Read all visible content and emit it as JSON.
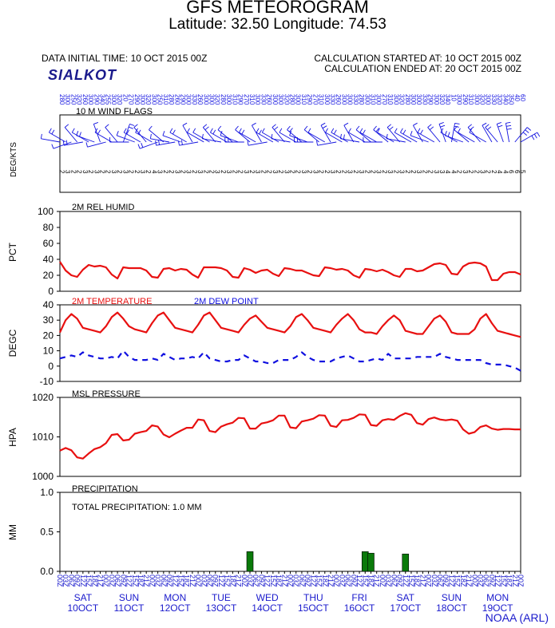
{
  "header": {
    "title": "GFS METEOROGRAM",
    "subtitle": "Latitude: 32.50 Longitude:  74.53",
    "initial_time": "DATA INITIAL TIME: 10 OCT 2015 00Z",
    "station": "SIALKOT",
    "calc_started": "CALCULATION STARTED AT: 10 OCT 2015 00Z",
    "calc_ended": "CALCULATION ENDED AT: 20 OCT 2015 00Z"
  },
  "credit": "NOAA (ARL)",
  "colors": {
    "red": "#e81010",
    "blue": "#1010e0",
    "green": "#0a7a0a",
    "dayblue": "#1a1acc"
  },
  "chart_data": [
    {
      "type": "wind-barbs",
      "title": "10 M  WIND FLAGS",
      "ylabel": "DEG/KTS",
      "hours": [
        0,
        3,
        6,
        9,
        12,
        15,
        18,
        21,
        24,
        27,
        30,
        33,
        36,
        39,
        42,
        45,
        48,
        51,
        54,
        57,
        60,
        63,
        66,
        69,
        72,
        75,
        78,
        81,
        84,
        87,
        90,
        93,
        96,
        99,
        102,
        105,
        108,
        111,
        114,
        117,
        120,
        123,
        126,
        129,
        132,
        135,
        138,
        141,
        144,
        147,
        150,
        153,
        156,
        159,
        162,
        165,
        168,
        171,
        174,
        177,
        180,
        183,
        186,
        189,
        192,
        195,
        198,
        201,
        204,
        207,
        210,
        213,
        216,
        219,
        222,
        225,
        228,
        231,
        234,
        237,
        240
      ],
      "speeds": [
        2,
        3,
        2,
        2,
        3,
        2,
        3,
        2,
        2,
        3,
        2,
        3,
        2,
        2,
        3,
        2,
        4,
        3,
        2,
        2,
        3,
        2,
        3,
        2,
        3,
        2,
        2,
        3,
        2,
        3,
        2,
        2,
        3,
        2,
        3,
        2,
        2,
        3,
        2,
        3,
        2,
        2,
        3,
        2,
        3,
        2,
        2,
        3,
        2,
        2,
        3,
        2,
        3,
        2,
        2,
        3,
        2,
        3,
        2,
        3,
        2,
        2,
        3,
        2,
        2,
        3,
        3,
        4,
        4,
        2,
        3,
        2,
        2,
        3,
        2,
        2,
        4,
        4,
        6,
        6,
        5
      ],
      "directions": [
        280,
        300,
        250,
        320,
        260,
        300,
        290,
        340,
        255,
        300,
        320,
        20,
        270,
        290,
        300,
        320,
        300,
        250,
        310,
        280,
        260,
        290,
        300,
        330,
        260,
        300,
        300,
        320,
        280,
        300,
        310,
        290,
        270,
        310,
        300,
        330,
        260,
        300,
        300,
        320,
        280,
        300,
        310,
        290,
        270,
        310,
        300,
        330,
        260,
        300,
        300,
        330,
        280,
        300,
        310,
        300,
        270,
        310,
        300,
        320,
        280,
        300,
        300,
        330,
        290,
        300,
        320,
        340,
        10,
        300,
        290,
        310,
        300,
        320,
        300,
        330,
        320,
        340,
        350,
        40,
        60
      ]
    },
    {
      "type": "line",
      "title": "2M REL HUMID",
      "ylabel": "PCT",
      "ylim": [
        0,
        100
      ],
      "yticks": [
        0,
        20,
        40,
        60,
        80,
        100
      ],
      "series": [
        {
          "color": "red",
          "x": [
            0,
            3,
            6,
            9,
            12,
            15,
            18,
            21,
            24,
            27,
            30,
            33,
            36,
            39,
            42,
            45,
            48,
            51,
            54,
            57,
            60,
            63,
            66,
            69,
            72,
            75,
            78,
            81,
            84,
            87,
            90,
            93,
            96,
            99,
            102,
            105,
            108,
            111,
            114,
            117,
            120,
            123,
            126,
            129,
            132,
            135,
            138,
            141,
            144,
            147,
            150,
            153,
            156,
            159,
            162,
            165,
            168,
            171,
            174,
            177,
            180,
            183,
            186,
            189,
            192,
            195,
            198,
            201,
            204,
            207,
            210,
            213,
            216,
            219,
            222,
            225,
            228,
            231,
            234,
            237,
            240
          ],
          "values": [
            37,
            26,
            20,
            18,
            27,
            33,
            31,
            32,
            30,
            21,
            16,
            30,
            29,
            29,
            29,
            26,
            18,
            17,
            28,
            29,
            26,
            28,
            27,
            21,
            17,
            30,
            30,
            30,
            29,
            26,
            18,
            17,
            29,
            27,
            23,
            26,
            27,
            22,
            19,
            29,
            28,
            26,
            26,
            23,
            20,
            19,
            30,
            29,
            27,
            28,
            26,
            20,
            17,
            28,
            27,
            25,
            27,
            24,
            20,
            18,
            28,
            28,
            25,
            26,
            30,
            34,
            35,
            33,
            22,
            21,
            31,
            35,
            36,
            35,
            31,
            14,
            14,
            22,
            24,
            24,
            21
          ]
        }
      ]
    },
    {
      "type": "line",
      "title": "",
      "ylabel": "DEGC",
      "ylim": [
        -10,
        40
      ],
      "yticks": [
        -10,
        0,
        10,
        20,
        30,
        40
      ],
      "series": [
        {
          "name": "2M TEMPERATURE",
          "color": "red",
          "dash": false,
          "x": [
            0,
            3,
            6,
            9,
            12,
            15,
            18,
            21,
            24,
            27,
            30,
            33,
            36,
            39,
            42,
            45,
            48,
            51,
            54,
            57,
            60,
            63,
            66,
            69,
            72,
            75,
            78,
            81,
            84,
            87,
            90,
            93,
            96,
            99,
            102,
            105,
            108,
            111,
            114,
            117,
            120,
            123,
            126,
            129,
            132,
            135,
            138,
            141,
            144,
            147,
            150,
            153,
            156,
            159,
            162,
            165,
            168,
            171,
            174,
            177,
            180,
            183,
            186,
            189,
            192,
            195,
            198,
            201,
            204,
            207,
            210,
            213,
            216,
            219,
            222,
            225,
            228,
            231,
            234,
            237,
            240
          ],
          "values": [
            22,
            30,
            34,
            31,
            25,
            24,
            23,
            22,
            26,
            32,
            35,
            31,
            26,
            24,
            23,
            22,
            28,
            33,
            35,
            30,
            25,
            24,
            23,
            22,
            27,
            33,
            35,
            30,
            25,
            24,
            23,
            22,
            27,
            31,
            33,
            29,
            25,
            24,
            23,
            22,
            26,
            32,
            34,
            30,
            25,
            24,
            23,
            22,
            27,
            31,
            34,
            30,
            24,
            22,
            22,
            21,
            26,
            30,
            33,
            30,
            23,
            22,
            21,
            21,
            26,
            31,
            33,
            29,
            22,
            21,
            21,
            21,
            24,
            31,
            34,
            28,
            23,
            22,
            21,
            20,
            19
          ]
        },
        {
          "name": "2M  DEW POINT",
          "color": "blue",
          "dash": true,
          "x": [
            0,
            3,
            6,
            9,
            12,
            15,
            18,
            21,
            24,
            27,
            30,
            33,
            36,
            39,
            42,
            45,
            48,
            51,
            54,
            57,
            60,
            63,
            66,
            69,
            72,
            75,
            78,
            81,
            84,
            87,
            90,
            93,
            96,
            99,
            102,
            105,
            108,
            111,
            114,
            117,
            120,
            123,
            126,
            129,
            132,
            135,
            138,
            141,
            144,
            147,
            150,
            153,
            156,
            159,
            162,
            165,
            168,
            171,
            174,
            177,
            180,
            183,
            186,
            189,
            192,
            195,
            198,
            201,
            204,
            207,
            210,
            213,
            216,
            219,
            222,
            225,
            228,
            231,
            234,
            237,
            240
          ],
          "values": [
            5,
            6,
            7,
            6,
            9,
            7,
            6,
            5,
            5,
            6,
            5,
            10,
            6,
            4,
            4,
            4,
            5,
            4,
            8,
            6,
            4,
            5,
            5,
            6,
            5,
            9,
            5,
            4,
            3,
            3,
            4,
            4,
            7,
            5,
            3,
            3,
            2,
            2,
            4,
            4,
            4,
            6,
            9,
            6,
            4,
            3,
            3,
            3,
            5,
            6,
            7,
            5,
            3,
            3,
            4,
            5,
            4,
            8,
            5,
            5,
            5,
            5,
            6,
            6,
            6,
            6,
            8,
            6,
            5,
            4,
            4,
            4,
            4,
            4,
            2,
            1,
            1,
            1,
            0,
            -1,
            -3
          ]
        }
      ]
    },
    {
      "type": "line",
      "title": "MSL PRESSURE",
      "ylabel": "HPA",
      "ylim": [
        1000,
        1020
      ],
      "yticks": [
        1000,
        1010,
        1020
      ],
      "series": [
        {
          "color": "red",
          "x": [
            0,
            3,
            6,
            9,
            12,
            15,
            18,
            21,
            24,
            27,
            30,
            33,
            36,
            39,
            42,
            45,
            48,
            51,
            54,
            57,
            60,
            63,
            66,
            69,
            72,
            75,
            78,
            81,
            84,
            87,
            90,
            93,
            96,
            99,
            102,
            105,
            108,
            111,
            114,
            117,
            120,
            123,
            126,
            129,
            132,
            135,
            138,
            141,
            144,
            147,
            150,
            153,
            156,
            159,
            162,
            165,
            168,
            171,
            174,
            177,
            180,
            183,
            186,
            189,
            192,
            195,
            198,
            201,
            204,
            207,
            210,
            213,
            216,
            219,
            222,
            225,
            228,
            231,
            234,
            237,
            240
          ],
          "values": [
            1006.5,
            1007.2,
            1006.6,
            1004.8,
            1004.5,
            1005.8,
            1006.9,
            1007.4,
            1008.4,
            1010.5,
            1010.7,
            1009.1,
            1009.3,
            1010.8,
            1011.2,
            1011.5,
            1012.9,
            1012.6,
            1010.6,
            1009.9,
            1010.8,
            1011.6,
            1012.3,
            1012.3,
            1014.4,
            1014.2,
            1011.5,
            1011.2,
            1012.6,
            1013.2,
            1013.6,
            1014.8,
            1014.7,
            1012.1,
            1012.1,
            1013.4,
            1013.7,
            1014.2,
            1015.4,
            1015.4,
            1012.4,
            1012.2,
            1013.9,
            1014.2,
            1014.6,
            1015.5,
            1015.4,
            1012.8,
            1012.5,
            1014.2,
            1014.3,
            1014.8,
            1015.7,
            1015.6,
            1013.0,
            1012.8,
            1014.2,
            1014.5,
            1014.3,
            1015.3,
            1016.0,
            1015.6,
            1013.5,
            1013.1,
            1014.5,
            1014.9,
            1014.4,
            1014.2,
            1014.4,
            1014.1,
            1011.9,
            1010.8,
            1011.2,
            1012.5,
            1012.9,
            1012.1,
            1011.8,
            1012.0,
            1012.0,
            1011.9,
            1011.9
          ]
        }
      ]
    },
    {
      "type": "bar",
      "title": "PRECIPITATION",
      "annotation": "TOTAL PRECIPITATION:   1.0 MM",
      "ylabel": "MM",
      "ylim": [
        0,
        1.0
      ],
      "yticks": [
        0.0,
        0.5,
        1.0
      ],
      "ytick_labels": [
        "0.0",
        "0.5",
        "1.0"
      ],
      "bars": [
        {
          "hour": 99,
          "value": 0.25
        },
        {
          "hour": 159,
          "value": 0.25
        },
        {
          "hour": 162,
          "value": 0.23
        },
        {
          "hour": 180,
          "value": 0.22
        }
      ]
    }
  ],
  "xaxis": {
    "hours": [
      0,
      3,
      6,
      9,
      12,
      15,
      18,
      21,
      24,
      27,
      30,
      33,
      36,
      39,
      42,
      45,
      48,
      51,
      54,
      57,
      60,
      63,
      66,
      69,
      72,
      75,
      78,
      81,
      84,
      87,
      90,
      93,
      96,
      99,
      102,
      105,
      108,
      111,
      114,
      117,
      120,
      123,
      126,
      129,
      132,
      135,
      138,
      141,
      144,
      147,
      150,
      153,
      156,
      159,
      162,
      165,
      168,
      171,
      174,
      177,
      180,
      183,
      186,
      189,
      192,
      195,
      198,
      201,
      204,
      207,
      210,
      213,
      216,
      219,
      222,
      225,
      228,
      231,
      234,
      237,
      240
    ],
    "utc_labels": [
      "00Z",
      "03Z",
      "06Z",
      "09Z",
      "12Z",
      "15Z",
      "18Z",
      "21Z"
    ],
    "days": [
      {
        "dow": "SAT",
        "date": "10OCT",
        "hour": 12
      },
      {
        "dow": "SUN",
        "date": "11OCT",
        "hour": 36
      },
      {
        "dow": "MON",
        "date": "12OCT",
        "hour": 60
      },
      {
        "dow": "TUE",
        "date": "13OCT",
        "hour": 84
      },
      {
        "dow": "WED",
        "date": "14OCT",
        "hour": 108
      },
      {
        "dow": "THU",
        "date": "15OCT",
        "hour": 132
      },
      {
        "dow": "FRI",
        "date": "16OCT",
        "hour": 156
      },
      {
        "dow": "SAT",
        "date": "17OCT",
        "hour": 180
      },
      {
        "dow": "SUN",
        "date": "18OCT",
        "hour": 204
      },
      {
        "dow": "MON",
        "date": "19OCT",
        "hour": 228
      }
    ]
  }
}
